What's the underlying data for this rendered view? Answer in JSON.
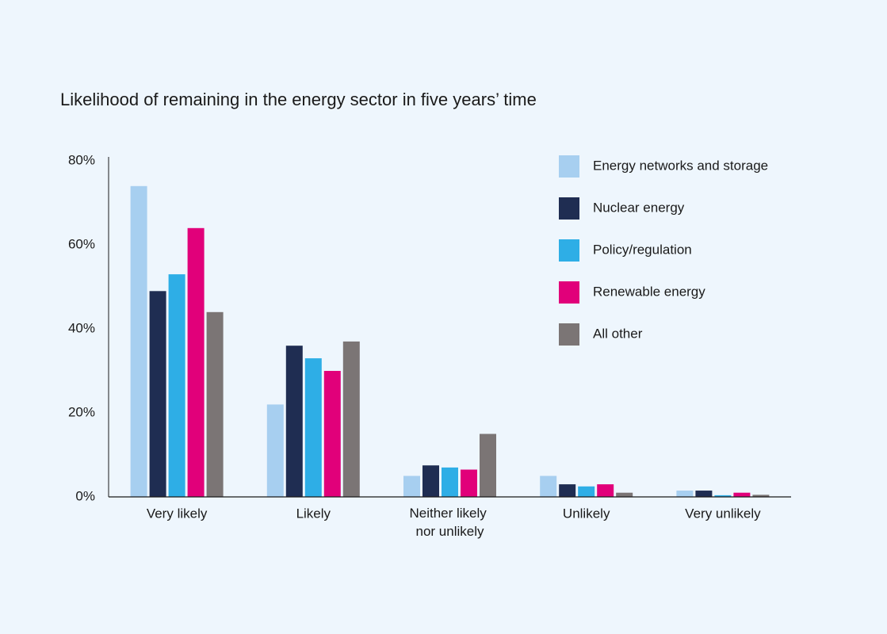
{
  "chart_data": {
    "type": "bar",
    "title": "Likelihood of remaining in the energy sector in five years’ time",
    "categories": [
      "Very likely",
      "Likely",
      "Neither likely nor unlikely",
      "Unlikely",
      "Very unlikely"
    ],
    "series": [
      {
        "name": "Energy networks and storage",
        "color": "#a7cff0",
        "values": [
          74,
          22,
          5,
          5,
          1.5
        ]
      },
      {
        "name": "Nuclear energy",
        "color": "#1f2d52",
        "values": [
          49,
          36,
          7.5,
          3,
          1.5
        ]
      },
      {
        "name": "Policy/regulation",
        "color": "#2eaee6",
        "values": [
          53,
          33,
          7,
          2.5,
          0.4
        ]
      },
      {
        "name": "Renewable energy",
        "color": "#e1007a",
        "values": [
          64,
          30,
          6.5,
          3,
          1
        ]
      },
      {
        "name": "All other",
        "color": "#7b7575",
        "values": [
          44,
          37,
          15,
          1,
          0.5
        ]
      }
    ],
    "ylim": [
      0,
      80
    ],
    "yticks": [
      {
        "value": 0,
        "label": "0%"
      },
      {
        "value": 20,
        "label": "20%"
      },
      {
        "value": 40,
        "label": "40%"
      },
      {
        "value": 60,
        "label": "60%"
      },
      {
        "value": 80,
        "label": "80%"
      }
    ],
    "grid": false,
    "legend": "top-right"
  }
}
